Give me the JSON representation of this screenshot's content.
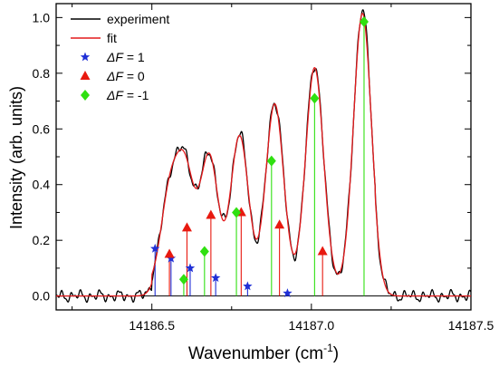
{
  "chart_data": {
    "type": "line",
    "xlabel": "Wavenumber (cm",
    "xlabel_sup": "-1",
    "xlabel_close": ")",
    "ylabel": "Intensity (arb. units)",
    "xlim": [
      14186.2,
      14187.5
    ],
    "ylim": [
      -0.05,
      1.05
    ],
    "x_ticks": [
      14186.5,
      14187.0,
      14187.5
    ],
    "x_tick_labels": [
      "14186.5",
      "14187.0",
      "14187.5"
    ],
    "y_ticks": [
      0.0,
      0.2,
      0.4,
      0.6,
      0.8,
      1.0
    ],
    "y_tick_labels": [
      "0.0",
      "0.2",
      "0.4",
      "0.6",
      "0.8",
      "1.0"
    ],
    "grid": false,
    "legend_position": "top-left",
    "colors": {
      "experiment": "#000000",
      "fit": "#e41a1c",
      "dF_plus1": "#1f2fd6",
      "dF_0": "#e8190f",
      "dF_minus1": "#2fe010"
    },
    "legend": [
      {
        "key": "experiment",
        "label": "experiment",
        "kind": "line"
      },
      {
        "key": "fit",
        "label": "fit",
        "kind": "line"
      },
      {
        "key": "dF_plus1",
        "label_var": "ΔF",
        "label_rest": " = 1",
        "kind": "star"
      },
      {
        "key": "dF_0",
        "label_var": "ΔF",
        "label_rest": " = 0",
        "kind": "triangle"
      },
      {
        "key": "dF_minus1",
        "label_var": "ΔF",
        "label_rest": " = -1",
        "kind": "diamond"
      }
    ],
    "peaks": {
      "centers": [
        14186.555,
        14186.605,
        14186.68,
        14186.775,
        14186.885,
        14187.01,
        14187.16
      ],
      "amplitudes": [
        0.32,
        0.4,
        0.47,
        0.545,
        0.66,
        0.79,
        0.985
      ],
      "width": 0.028,
      "baseline_low": 0.0,
      "baseline_high": 0.03
    },
    "stick_series": [
      {
        "key": "dF_plus1",
        "x": [
          14186.51,
          14186.56,
          14186.62,
          14186.7,
          14186.8,
          14186.925
        ],
        "y": [
          0.17,
          0.135,
          0.1,
          0.065,
          0.035,
          0.01
        ]
      },
      {
        "key": "dF_0",
        "x": [
          14186.555,
          14186.61,
          14186.685,
          14186.78,
          14186.9,
          14187.035
        ],
        "y": [
          0.15,
          0.245,
          0.29,
          0.3,
          0.255,
          0.16
        ]
      },
      {
        "key": "dF_minus1",
        "x": [
          14186.6,
          14186.665,
          14186.765,
          14186.875,
          14187.01,
          14187.165
        ],
        "y": [
          0.06,
          0.16,
          0.3,
          0.485,
          0.71,
          0.985
        ]
      }
    ]
  }
}
